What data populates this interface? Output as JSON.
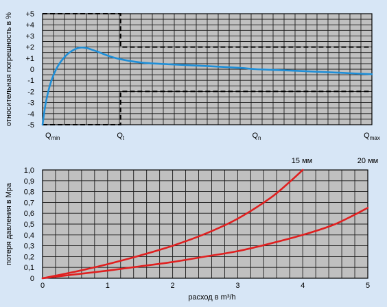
{
  "colors": {
    "background": "#d7e6f6",
    "plot_area": "#c0c0c0",
    "grid": "#1a1a1a",
    "error_curve": "#1f8fd8",
    "pressure_curves": "#e02020",
    "tolerance_lines": "#000000"
  },
  "chart_data": [
    {
      "type": "line",
      "ylabel": "относительная погрешность в %",
      "xlabel": "",
      "ylim": [
        -5,
        5
      ],
      "y_ticks": [
        "+5",
        "+4",
        "+3",
        "+2",
        "+1",
        "0",
        "-1",
        "-2",
        "-3",
        "-4",
        "-5"
      ],
      "x_markers": [
        {
          "main": "Q",
          "sub": "min",
          "x": 0
        },
        {
          "main": "Q",
          "sub": "t",
          "x": 0.237
        },
        {
          "main": "Q",
          "sub": "n",
          "x": 0.65
        },
        {
          "main": "Q",
          "sub": "max",
          "x": 1
        }
      ],
      "grid": true,
      "tolerance_band": {
        "upper": [
          {
            "x": 0,
            "y": 5
          },
          {
            "x": 0.237,
            "y": 5
          },
          {
            "x": 0.237,
            "y": 2
          },
          {
            "x": 1,
            "y": 2
          }
        ],
        "lower": [
          {
            "x": 0,
            "y": -5
          },
          {
            "x": 0.237,
            "y": -5
          },
          {
            "x": 0.237,
            "y": -2
          },
          {
            "x": 1,
            "y": -2
          }
        ]
      },
      "series": [
        {
          "points": [
            {
              "x": 0.0,
              "y": -5.0
            },
            {
              "x": 0.01,
              "y": -3.0
            },
            {
              "x": 0.025,
              "y": -1.2
            },
            {
              "x": 0.045,
              "y": 0.2
            },
            {
              "x": 0.07,
              "y": 1.2
            },
            {
              "x": 0.095,
              "y": 1.75
            },
            {
              "x": 0.115,
              "y": 1.95
            },
            {
              "x": 0.135,
              "y": 1.9
            },
            {
              "x": 0.165,
              "y": 1.6
            },
            {
              "x": 0.2,
              "y": 1.2
            },
            {
              "x": 0.237,
              "y": 0.9
            },
            {
              "x": 0.3,
              "y": 0.6
            },
            {
              "x": 0.4,
              "y": 0.42
            },
            {
              "x": 0.5,
              "y": 0.28
            },
            {
              "x": 0.6,
              "y": 0.12
            },
            {
              "x": 0.65,
              "y": 0.0
            },
            {
              "x": 0.75,
              "y": -0.12
            },
            {
              "x": 0.85,
              "y": -0.25
            },
            {
              "x": 1.0,
              "y": -0.45
            }
          ]
        }
      ]
    },
    {
      "type": "line",
      "xlabel": "расход в m³/h",
      "ylabel": "потеря давления в Мра",
      "xlim": [
        0,
        5
      ],
      "ylim": [
        0,
        1
      ],
      "x_ticks": [
        "0",
        "1",
        "2",
        "3",
        "4",
        "5"
      ],
      "y_ticks": [
        "0",
        "0,1",
        "0,2",
        "0,3",
        "0,4",
        "0,5",
        "0,6",
        "0,7",
        "0,8",
        "0,9",
        "1,0"
      ],
      "grid": true,
      "series": [
        {
          "name": "15 мм",
          "x": [
            0,
            0.5,
            1,
            1.5,
            2,
            2.5,
            3,
            3.5,
            3.8,
            4.0
          ],
          "y": [
            0,
            0.06,
            0.13,
            0.21,
            0.3,
            0.41,
            0.55,
            0.74,
            0.89,
            1.0
          ]
        },
        {
          "name": "20 мм",
          "x": [
            0,
            0.5,
            1,
            1.5,
            2,
            2.5,
            3,
            3.5,
            4,
            4.5,
            5
          ],
          "y": [
            0,
            0.035,
            0.07,
            0.11,
            0.15,
            0.2,
            0.25,
            0.32,
            0.4,
            0.5,
            0.65
          ]
        }
      ]
    }
  ]
}
